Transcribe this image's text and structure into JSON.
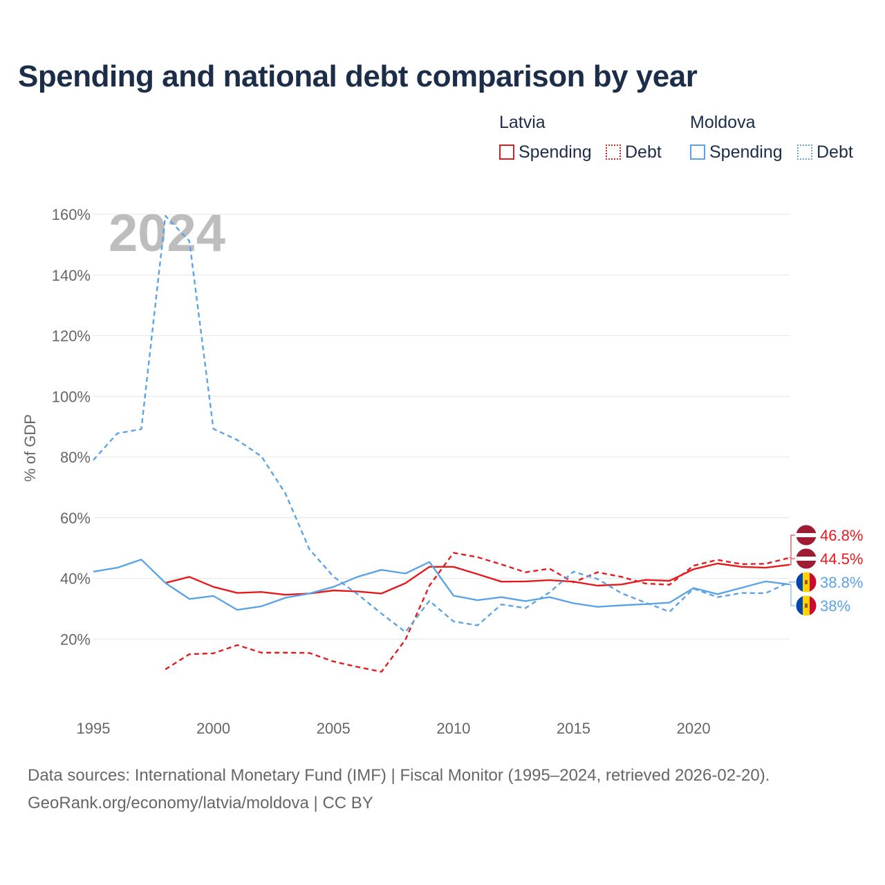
{
  "title": "Spending and national debt comparison by year",
  "legend": {
    "groups": [
      {
        "country": "Latvia",
        "color": "#e41a1c",
        "items": [
          "Spending",
          "Debt"
        ]
      },
      {
        "country": "Moldova",
        "color": "#5ba3e6",
        "items": [
          "Spending",
          "Debt"
        ]
      }
    ]
  },
  "chart_data": {
    "type": "line",
    "title": "Spending and national debt comparison by year",
    "xlabel": "",
    "ylabel": "% of GDP",
    "xlim": [
      1995,
      2024
    ],
    "ylim": [
      0,
      160
    ],
    "x_ticks": [
      1995,
      2000,
      2005,
      2010,
      2015,
      2020
    ],
    "y_ticks": [
      20,
      40,
      60,
      80,
      100,
      120,
      140,
      160
    ],
    "y_tick_labels": [
      "20%",
      "40%",
      "60%",
      "80%",
      "100%",
      "120%",
      "140%",
      "160%"
    ],
    "year_watermark": "2024",
    "grid": true,
    "series": [
      {
        "name": "Latvia Spending",
        "country": "Latvia",
        "measure": "Spending",
        "color": "#e41a1c",
        "dash": "solid",
        "x": [
          1998,
          1999,
          2000,
          2001,
          2002,
          2003,
          2004,
          2005,
          2006,
          2007,
          2008,
          2009,
          2010,
          2011,
          2012,
          2013,
          2014,
          2015,
          2016,
          2017,
          2018,
          2019,
          2020,
          2021,
          2022,
          2023,
          2024
        ],
        "values": [
          38.5,
          40.5,
          37.2,
          35.2,
          35.5,
          34.6,
          35.0,
          36.0,
          35.7,
          35.0,
          38.4,
          43.8,
          43.8,
          41.4,
          38.9,
          39.0,
          39.4,
          38.9,
          37.6,
          38.0,
          39.5,
          39.2,
          43.0,
          44.9,
          43.8,
          43.5,
          44.5
        ]
      },
      {
        "name": "Latvia Debt",
        "country": "Latvia",
        "measure": "Debt",
        "color": "#e41a1c",
        "dash": "dashed",
        "x": [
          1998,
          1999,
          2000,
          2001,
          2002,
          2003,
          2004,
          2005,
          2006,
          2007,
          2008,
          2009,
          2010,
          2011,
          2012,
          2013,
          2014,
          2015,
          2016,
          2017,
          2018,
          2019,
          2020,
          2021,
          2022,
          2023,
          2024
        ],
        "values": [
          10.0,
          15.0,
          15.3,
          18.0,
          15.5,
          15.5,
          15.4,
          12.6,
          10.8,
          9.2,
          19.8,
          37.6,
          48.4,
          47.0,
          44.6,
          42.0,
          43.2,
          38.7,
          42.0,
          40.5,
          38.3,
          37.9,
          44.2,
          46.1,
          44.7,
          44.8,
          46.8
        ]
      },
      {
        "name": "Moldova Spending",
        "country": "Moldova",
        "measure": "Spending",
        "color": "#5ba3e6",
        "dash": "solid",
        "x": [
          1995,
          1996,
          1997,
          1998,
          1999,
          2000,
          2001,
          2002,
          2003,
          2004,
          2005,
          2006,
          2007,
          2008,
          2009,
          2010,
          2011,
          2012,
          2013,
          2014,
          2015,
          2016,
          2017,
          2018,
          2019,
          2020,
          2021,
          2022,
          2023,
          2024
        ],
        "values": [
          42.2,
          43.5,
          46.2,
          38.5,
          33.2,
          34.2,
          29.6,
          30.8,
          33.6,
          35.0,
          37.2,
          40.5,
          42.8,
          41.6,
          45.4,
          34.3,
          32.8,
          33.8,
          32.5,
          33.8,
          31.8,
          30.6,
          31.1,
          31.5,
          32.0,
          36.8,
          34.8,
          36.9,
          39.0,
          38.0
        ]
      },
      {
        "name": "Moldova Debt",
        "country": "Moldova",
        "measure": "Debt",
        "color": "#5ba3e6",
        "dash": "dashed",
        "x": [
          1995,
          1996,
          1997,
          1998,
          1999,
          2000,
          2001,
          2002,
          2003,
          2004,
          2005,
          2006,
          2007,
          2008,
          2009,
          2010,
          2011,
          2012,
          2013,
          2014,
          2015,
          2016,
          2017,
          2018,
          2019,
          2020,
          2021,
          2022,
          2023,
          2024
        ],
        "values": [
          79.0,
          87.8,
          89.2,
          159.5,
          151.2,
          89.3,
          85.6,
          80.2,
          68.0,
          49.6,
          40.6,
          34.8,
          28.4,
          22.3,
          32.6,
          25.8,
          24.5,
          31.4,
          30.2,
          35.4,
          42.2,
          39.8,
          35.1,
          32.0,
          29.0,
          36.6,
          33.8,
          35.2,
          35.1,
          38.8
        ]
      }
    ],
    "end_labels": [
      {
        "country": "Latvia",
        "text": "46.8%",
        "value": 46.8,
        "color": "#e41a1c"
      },
      {
        "country": "Latvia",
        "text": "44.5%",
        "value": 44.5,
        "color": "#e41a1c"
      },
      {
        "country": "Moldova",
        "text": "38.8%",
        "value": 38.8,
        "color": "#5ba3e6"
      },
      {
        "country": "Moldova",
        "text": "38%",
        "value": 38.0,
        "color": "#5ba3e6"
      }
    ]
  },
  "footer": {
    "line1": "Data sources: International Monetary Fund (IMF) | Fiscal Monitor (1995–2024, retrieved 2026-02-20).",
    "line2": "GeoRank.org/economy/latvia/moldova | CC BY"
  }
}
